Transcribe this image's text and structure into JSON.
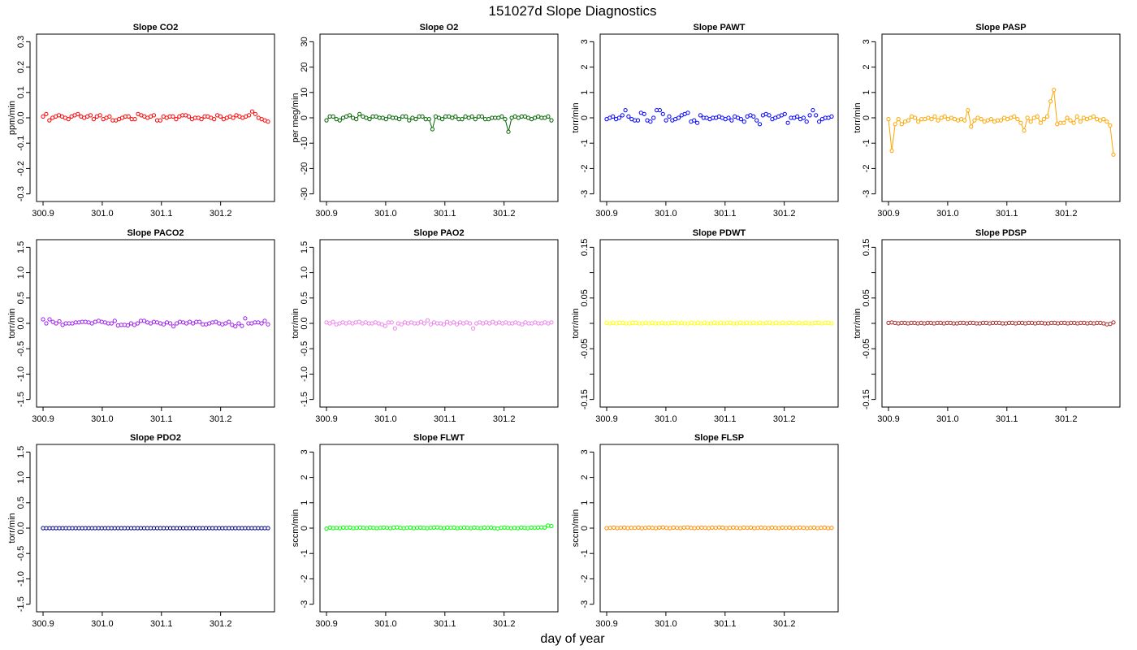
{
  "figure": {
    "title": "151027d   Slope Diagnostics",
    "xlabel": "day of year"
  },
  "chart_data": [
    {
      "type": "scatter",
      "title": "Slope CO2",
      "ylabel": "ppm/min",
      "color": "#ff0000",
      "ylim": [
        -0.33,
        0.33
      ],
      "yticks": [
        "-0.3",
        "-0.2",
        "-0.1",
        "0.0",
        "0.1",
        "0.2",
        "0.3"
      ],
      "ytickvals": [
        -0.3,
        -0.2,
        -0.1,
        0,
        0.1,
        0.2,
        0.3
      ],
      "xlim": [
        300.889,
        301.291
      ],
      "xticks": [
        300.9,
        301.0,
        301.1,
        301.2
      ],
      "xticklabels": [
        "300.9",
        "301.0",
        "301.1",
        "301.2"
      ],
      "lines": false,
      "values": [
        0.005,
        0.015,
        -0.01,
        0.0,
        0.005,
        0.01,
        0.005,
        0.0,
        -0.005,
        0.005,
        0.01,
        0.015,
        0.005,
        0.0,
        0.005,
        0.01,
        -0.005,
        0.005,
        0.01,
        -0.005,
        0.0,
        0.005,
        -0.01,
        -0.01,
        -0.005,
        0.0,
        0.005,
        0.005,
        -0.005,
        -0.005,
        0.015,
        0.01,
        0.005,
        0.0,
        0.005,
        0.01,
        -0.01,
        -0.01,
        0.005,
        0.0,
        0.005,
        0.005,
        -0.005,
        0.005,
        0.01,
        0.01,
        0.005,
        -0.005,
        0.0,
        0.0,
        -0.005,
        0.005,
        0.005,
        0.0,
        -0.005,
        0.01,
        0.005,
        -0.005,
        0.0,
        0.005,
        0.0,
        0.01,
        0.005,
        0.0,
        0.005,
        0.01,
        0.025,
        0.015,
        0.0,
        -0.005,
        -0.01,
        -0.015
      ]
    },
    {
      "type": "scatter",
      "title": "Slope O2",
      "ylabel": "per meg/min",
      "color": "#006400",
      "ylim": [
        -33,
        33
      ],
      "yticks": [
        "-30",
        "-20",
        "-10",
        "0",
        "10",
        "20",
        "30"
      ],
      "ytickvals": [
        -30,
        -20,
        -10,
        0,
        10,
        20,
        30
      ],
      "xlim": [
        300.889,
        301.291
      ],
      "xticks": [
        300.9,
        301.0,
        301.1,
        301.2
      ],
      "xticklabels": [
        "300.9",
        "301.0",
        "301.1",
        "301.2"
      ],
      "lines": true,
      "values": [
        -1,
        0.5,
        0.5,
        -0.5,
        -1,
        0,
        0.5,
        1,
        0,
        -0.5,
        1.5,
        0.5,
        0,
        -0.5,
        0.5,
        0.5,
        0,
        0,
        -0.5,
        0.5,
        0,
        0,
        -0.5,
        0.5,
        0.5,
        -1,
        0,
        -0.5,
        0.5,
        0.5,
        -0.5,
        -0.5,
        -4.5,
        0.5,
        0,
        -0.5,
        0.5,
        0.5,
        0,
        0.5,
        -0.5,
        -0.5,
        0.5,
        0,
        0.5,
        -0.5,
        0.5,
        0.5,
        -0.5,
        -0.5,
        0,
        0,
        0,
        0.5,
        -0.5,
        -5.5,
        0,
        0.5,
        0,
        0.5,
        0.5,
        0,
        -0.5,
        0,
        0.5,
        0,
        0,
        0.5,
        -1
      ]
    },
    {
      "type": "scatter",
      "title": "Slope PAWT",
      "ylabel": "torr/min",
      "color": "#0000ff",
      "ylim": [
        -3.3,
        3.3
      ],
      "yticks": [
        "-3",
        "-2",
        "-1",
        "0",
        "1",
        "2",
        "3"
      ],
      "ytickvals": [
        -3,
        -2,
        -1,
        0,
        1,
        2,
        3
      ],
      "xlim": [
        300.889,
        301.291
      ],
      "xticks": [
        300.9,
        301.0,
        301.1,
        301.2
      ],
      "xticklabels": [
        "300.9",
        "301.0",
        "301.1",
        "301.2"
      ],
      "lines": false,
      "values": [
        -0.05,
        0.0,
        0.05,
        -0.05,
        0.0,
        0.1,
        0.3,
        0.05,
        -0.05,
        -0.1,
        -0.1,
        0.2,
        0.15,
        -0.1,
        -0.15,
        0.0,
        0.3,
        0.3,
        0.15,
        -0.1,
        0.05,
        -0.1,
        -0.05,
        0.0,
        0.1,
        0.15,
        0.2,
        -0.15,
        -0.1,
        -0.2,
        0.1,
        0.0,
        0.0,
        -0.05,
        0.0,
        0.0,
        0.05,
        0.0,
        -0.05,
        0.0,
        -0.1,
        0.05,
        0.0,
        -0.05,
        -0.15,
        0.05,
        0.1,
        0.05,
        -0.1,
        -0.25,
        0.1,
        0.15,
        0.1,
        -0.05,
        0.0,
        0.05,
        0.1,
        0.15,
        -0.2,
        0.0,
        0.0,
        0.05,
        -0.05,
        0.0,
        -0.15,
        0.1,
        0.3,
        0.1,
        -0.15,
        -0.05,
        0.0,
        0.0,
        0.05
      ]
    },
    {
      "type": "scatter",
      "title": "Slope PASP",
      "ylabel": "torr/min",
      "color": "#ffa500",
      "ylim": [
        -3.3,
        3.3
      ],
      "yticks": [
        "-3",
        "-2",
        "-1",
        "0",
        "1",
        "2",
        "3"
      ],
      "ytickvals": [
        -3,
        -2,
        -1,
        0,
        1,
        2,
        3
      ],
      "xlim": [
        300.889,
        301.291
      ],
      "xticks": [
        300.9,
        301.0,
        301.1,
        301.2
      ],
      "xticklabels": [
        "300.9",
        "301.0",
        "301.1",
        "301.2"
      ],
      "lines": true,
      "values": [
        -0.05,
        -1.3,
        -0.25,
        -0.05,
        -0.25,
        -0.15,
        -0.1,
        0.05,
        0.0,
        -0.15,
        -0.05,
        -0.05,
        0.0,
        -0.05,
        0.05,
        -0.1,
        0.0,
        0.05,
        -0.05,
        0.0,
        -0.05,
        -0.1,
        -0.05,
        -0.1,
        0.3,
        -0.35,
        -0.1,
        0.0,
        -0.05,
        -0.15,
        -0.1,
        -0.05,
        -0.15,
        -0.1,
        -0.1,
        0.0,
        -0.05,
        0.0,
        0.05,
        -0.05,
        -0.2,
        -0.5,
        0.0,
        -0.15,
        0.0,
        0.05,
        -0.2,
        -0.05,
        0.05,
        0.65,
        1.1,
        -0.25,
        -0.2,
        -0.2,
        0.0,
        -0.1,
        -0.2,
        0.05,
        -0.15,
        0.0,
        -0.05,
        0.0,
        0.05,
        -0.05,
        -0.1,
        -0.05,
        -0.15,
        -0.3,
        -1.45
      ]
    },
    {
      "type": "scatter",
      "title": "Slope PACO2",
      "ylabel": "torr/min",
      "color": "#a020f0",
      "ylim": [
        -1.65,
        1.65
      ],
      "yticks": [
        "-1.5",
        "-1.0",
        "-0.5",
        "0.0",
        "0.5",
        "1.0",
        "1.5"
      ],
      "ytickvals": [
        -1.5,
        -1,
        -0.5,
        0,
        0.5,
        1,
        1.5
      ],
      "xlim": [
        300.889,
        301.291
      ],
      "xticks": [
        300.9,
        301.0,
        301.1,
        301.2
      ],
      "xticklabels": [
        "300.9",
        "301.0",
        "301.1",
        "301.2"
      ],
      "lines": false,
      "values": [
        0.08,
        0.0,
        0.08,
        0.03,
        0.0,
        0.04,
        -0.03,
        0.0,
        0.0,
        0.0,
        0.02,
        0.02,
        0.03,
        0.03,
        0.02,
        0.0,
        0.03,
        0.05,
        0.03,
        0.02,
        0.0,
        0.0,
        0.05,
        -0.04,
        -0.03,
        -0.03,
        -0.04,
        0.0,
        -0.03,
        0.0,
        0.05,
        0.05,
        0.02,
        0.0,
        0.03,
        0.02,
        0.0,
        -0.02,
        0.02,
        0.0,
        -0.06,
        0.0,
        0.03,
        0.02,
        0.0,
        0.03,
        0.0,
        0.03,
        0.03,
        -0.02,
        -0.02,
        0.0,
        0.02,
        0.03,
        0.0,
        -0.02,
        0.0,
        0.03,
        -0.03,
        -0.06,
        0.0,
        -0.05,
        0.1,
        0.0,
        0.0,
        0.02,
        0.02,
        0.0,
        0.05,
        -0.02
      ]
    },
    {
      "type": "scatter",
      "title": "Slope PAO2",
      "ylabel": "torr/min",
      "color": "#ee82ee",
      "ylim": [
        -1.65,
        1.65
      ],
      "yticks": [
        "-1.5",
        "-1.0",
        "-0.5",
        "0.0",
        "0.5",
        "1.0",
        "1.5"
      ],
      "ytickvals": [
        -1.5,
        -1,
        -0.5,
        0,
        0.5,
        1,
        1.5
      ],
      "xlim": [
        300.889,
        301.291
      ],
      "xticks": [
        300.9,
        301.0,
        301.1,
        301.2
      ],
      "xticklabels": [
        "300.9",
        "301.0",
        "301.1",
        "301.2"
      ],
      "lines": false,
      "values": [
        0.02,
        0.0,
        0.03,
        -0.02,
        0.0,
        0.02,
        0.0,
        0.02,
        0.0,
        0.02,
        0.03,
        0.0,
        0.02,
        0.0,
        0.0,
        0.02,
        0.0,
        -0.02,
        -0.05,
        0.02,
        0.02,
        -0.1,
        0.0,
        -0.02,
        0.02,
        0.0,
        0.02,
        0.0,
        0.0,
        0.03,
        0.0,
        0.06,
        -0.02,
        0.02,
        0.0,
        0.0,
        -0.02,
        0.03,
        0.0,
        0.02,
        -0.02,
        0.02,
        0.0,
        0.02,
        0.0,
        -0.1,
        0.0,
        0.02,
        0.0,
        0.02,
        0.0,
        0.03,
        0.0,
        0.02,
        0.0,
        0.02,
        0.0,
        0.0,
        0.02,
        0.0,
        -0.02,
        0.02,
        0.0,
        0.0,
        0.02,
        0.0,
        0.0,
        0.02,
        0.0,
        0.02
      ]
    },
    {
      "type": "scatter",
      "title": "Slope PDWT",
      "ylabel": "torr/min",
      "color": "#ffff00",
      "ylim": [
        -0.165,
        0.165
      ],
      "yticks": [
        "-0.15",
        "-0.05",
        "0.05",
        "0.15"
      ],
      "ytickvals": [
        -0.15,
        -0.05,
        0.05,
        0.15
      ],
      "minorticks": [
        -0.1,
        0,
        0.1
      ],
      "xlim": [
        300.889,
        301.291
      ],
      "xticks": [
        300.9,
        301.0,
        301.1,
        301.2
      ],
      "xticklabels": [
        "300.9",
        "301.0",
        "301.1",
        "301.2"
      ],
      "lines": false,
      "values": [
        0.001,
        0.0,
        0.001,
        0.0,
        0.001,
        0.001,
        0.0,
        0.0,
        0.001,
        0.001,
        0.0,
        0.0,
        0.001,
        0.0,
        0.001,
        0.0,
        0.0,
        0.001,
        0.0,
        0.0,
        0.001,
        0.001,
        0.0,
        0.001,
        0.0,
        0.0,
        0.001,
        0.0,
        0.001,
        0.0,
        0.001,
        0.0,
        0.0,
        0.001,
        0.0,
        0.001,
        0.0,
        0.001,
        0.001,
        0.0,
        0.0,
        0.001,
        0.0,
        0.001,
        0.0,
        0.001,
        0.0,
        0.001,
        0.0,
        0.001,
        0.001,
        0.0,
        0.001,
        0.0,
        0.001,
        0.0,
        0.001,
        0.001,
        0.0,
        0.001,
        0.0,
        0.001,
        0.0,
        0.0,
        0.001,
        0.001,
        0.0,
        0.001,
        0.001,
        0.0
      ]
    },
    {
      "type": "scatter",
      "title": "Slope PDSP",
      "ylabel": "torr/min",
      "color": "#a52a2a",
      "ylim": [
        -0.165,
        0.165
      ],
      "yticks": [
        "-0.15",
        "-0.05",
        "0.05",
        "0.15"
      ],
      "ytickvals": [
        -0.15,
        -0.05,
        0.05,
        0.15
      ],
      "minorticks": [
        -0.1,
        0,
        0.1
      ],
      "xlim": [
        300.889,
        301.291
      ],
      "xticks": [
        300.9,
        301.0,
        301.1,
        301.2
      ],
      "xticklabels": [
        "300.9",
        "301.0",
        "301.1",
        "301.2"
      ],
      "lines": true,
      "values": [
        0.001,
        0.002,
        0.001,
        0.0,
        0.001,
        0.001,
        0.0,
        0.001,
        0.001,
        0.0,
        0.001,
        0.0,
        0.001,
        0.001,
        0.0,
        0.001,
        0.001,
        0.0,
        0.001,
        0.001,
        0.0,
        0.0,
        0.001,
        0.001,
        0.0,
        0.001,
        0.001,
        0.0,
        0.0,
        0.001,
        0.001,
        0.0,
        0.001,
        0.001,
        0.001,
        0.0,
        0.0,
        0.001,
        0.001,
        0.0,
        0.001,
        0.001,
        0.0,
        0.001,
        0.001,
        0.0,
        0.001,
        0.001,
        0.0,
        0.0,
        0.001,
        0.001,
        0.0,
        0.001,
        0.001,
        0.0,
        0.001,
        0.001,
        0.0,
        0.001,
        0.001,
        0.0,
        0.001,
        0.0,
        0.001,
        0.001,
        0.0,
        -0.002,
        -0.001,
        0.002
      ]
    },
    {
      "type": "scatter",
      "title": "Slope PDO2",
      "ylabel": "torr/min",
      "color": "#000080",
      "ylim": [
        -1.65,
        1.65
      ],
      "yticks": [
        "-1.5",
        "-1.0",
        "-0.5",
        "0.0",
        "0.5",
        "1.0",
        "1.5"
      ],
      "ytickvals": [
        -1.5,
        -1,
        -0.5,
        0,
        0.5,
        1,
        1.5
      ],
      "xlim": [
        300.889,
        301.291
      ],
      "xticks": [
        300.9,
        301.0,
        301.1,
        301.2
      ],
      "xticklabels": [
        "300.9",
        "301.0",
        "301.1",
        "301.2"
      ],
      "lines": false,
      "values": [
        0,
        0,
        0,
        0,
        0,
        0,
        0,
        0,
        0,
        0,
        0,
        0,
        0,
        0,
        0,
        0,
        0,
        0,
        0,
        0,
        0,
        0,
        0,
        0,
        0,
        0,
        0,
        0,
        0,
        0,
        0,
        0,
        0,
        0,
        0,
        0,
        0,
        0,
        0,
        0,
        0,
        0,
        0,
        0,
        0,
        0,
        0,
        0,
        0,
        0,
        0,
        0,
        0,
        0,
        0,
        0,
        0,
        0,
        0,
        0,
        0,
        0,
        0,
        0,
        0,
        0,
        0,
        0,
        0,
        0
      ]
    },
    {
      "type": "scatter",
      "title": "Slope FLWT",
      "ylabel": "sccm/min",
      "color": "#00ff00",
      "ylim": [
        -3.3,
        3.3
      ],
      "yticks": [
        "-3",
        "-2",
        "-1",
        "0",
        "1",
        "2",
        "3"
      ],
      "ytickvals": [
        -3,
        -2,
        -1,
        0,
        1,
        2,
        3
      ],
      "xlim": [
        300.889,
        301.291
      ],
      "xticks": [
        300.9,
        301.0,
        301.1,
        301.2
      ],
      "xticklabels": [
        "300.9",
        "301.0",
        "301.1",
        "301.2"
      ],
      "lines": true,
      "values": [
        -0.02,
        0.02,
        0.0,
        0.01,
        0.0,
        0.02,
        0.01,
        0.02,
        0.0,
        0.01,
        0.02,
        0.01,
        0.0,
        0.02,
        0.01,
        0.0,
        0.01,
        0.02,
        0.01,
        0.0,
        0.02,
        0.03,
        0.01,
        0.0,
        0.01,
        0.02,
        0.0,
        0.01,
        0.02,
        0.01,
        0.0,
        0.01,
        0.02,
        0.03,
        0.01,
        0.0,
        0.02,
        0.01,
        0.02,
        0.0,
        0.01,
        0.02,
        0.01,
        0.0,
        0.02,
        0.01,
        0.0,
        0.02,
        0.01,
        0.02,
        0.0,
        -0.01,
        0.01,
        0.02,
        0.01,
        0.0,
        0.01,
        0.0,
        0.02,
        0.01,
        0.0,
        0.02,
        0.01,
        0.02,
        0.03,
        0.02,
        0.1,
        0.08
      ]
    },
    {
      "type": "scatter",
      "title": "Slope FLSP",
      "ylabel": "sccm/min",
      "color": "#ff8c00",
      "ylim": [
        -3.3,
        3.3
      ],
      "yticks": [
        "-3",
        "-2",
        "-1",
        "0",
        "1",
        "2",
        "3"
      ],
      "ytickvals": [
        -3,
        -2,
        -1,
        0,
        1,
        2,
        3
      ],
      "xlim": [
        300.889,
        301.291
      ],
      "xticks": [
        300.9,
        301.0,
        301.1,
        301.2
      ],
      "xticklabels": [
        "300.9",
        "301.0",
        "301.1",
        "301.2"
      ],
      "lines": false,
      "values": [
        0.0,
        0.01,
        0.02,
        0.0,
        0.01,
        0.02,
        0.0,
        0.01,
        0.01,
        0.02,
        0.0,
        0.01,
        0.02,
        0.01,
        0.0,
        0.02,
        0.03,
        0.01,
        0.0,
        0.02,
        0.01,
        0.0,
        0.02,
        0.03,
        0.01,
        0.0,
        0.01,
        0.02,
        0.01,
        0.0,
        0.02,
        0.01,
        0.03,
        0.02,
        0.0,
        0.01,
        0.02,
        0.01,
        0.0,
        0.02,
        0.01,
        0.02,
        0.0,
        0.01,
        0.02,
        0.01,
        0.0,
        0.02,
        0.01,
        0.0,
        0.02,
        0.01,
        0.02,
        0.0,
        0.01,
        0.02,
        0.01,
        0.0,
        0.01,
        0.02,
        0.0,
        0.01,
        0.02,
        0.0,
        0.01
      ]
    }
  ]
}
